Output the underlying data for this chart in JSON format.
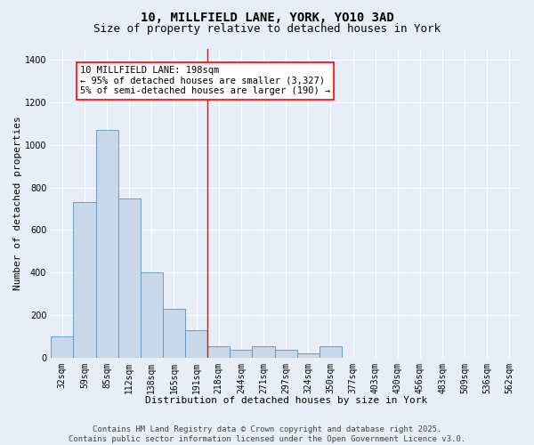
{
  "title_line1": "10, MILLFIELD LANE, YORK, YO10 3AD",
  "title_line2": "Size of property relative to detached houses in York",
  "xlabel": "Distribution of detached houses by size in York",
  "ylabel": "Number of detached properties",
  "categories": [
    "32sqm",
    "59sqm",
    "85sqm",
    "112sqm",
    "138sqm",
    "165sqm",
    "191sqm",
    "218sqm",
    "244sqm",
    "271sqm",
    "297sqm",
    "324sqm",
    "350sqm",
    "377sqm",
    "403sqm",
    "430sqm",
    "456sqm",
    "483sqm",
    "509sqm",
    "536sqm",
    "562sqm"
  ],
  "values": [
    100,
    730,
    1070,
    750,
    400,
    230,
    130,
    55,
    40,
    55,
    40,
    20,
    55,
    0,
    0,
    0,
    0,
    0,
    0,
    0,
    0
  ],
  "bar_color": "#c8d8e8",
  "bar_edge_color": "#6090b8",
  "vline_x_index": 6.5,
  "vline_color": "red",
  "annotation_text": "10 MILLFIELD LANE: 198sqm\n← 95% of detached houses are smaller (3,327)\n5% of semi-detached houses are larger (190) →",
  "annotation_box_color": "white",
  "annotation_box_edge_color": "red",
  "ylim": [
    0,
    1450
  ],
  "yticks": [
    0,
    200,
    400,
    600,
    800,
    1000,
    1200,
    1400
  ],
  "background_color": "#e8eef8",
  "plot_bg_color": "#e8eef8",
  "footer_text": "Contains HM Land Registry data © Crown copyright and database right 2025.\nContains public sector information licensed under the Open Government Licence v3.0.",
  "title_fontsize": 10,
  "subtitle_fontsize": 9,
  "axis_label_fontsize": 8,
  "tick_fontsize": 7,
  "annotation_fontsize": 7.5,
  "footer_fontsize": 6.5
}
